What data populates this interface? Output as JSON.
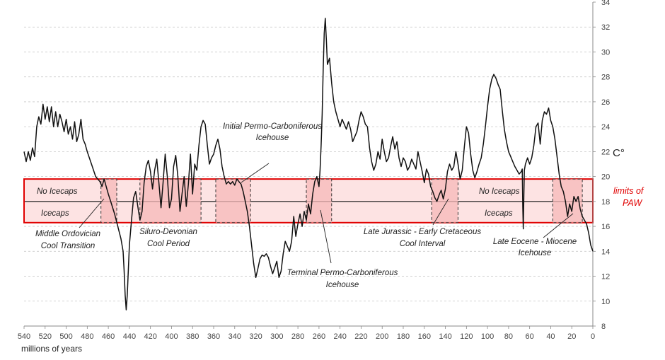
{
  "chart_data": {
    "type": "line",
    "title": "",
    "xlabel": "millions of years",
    "ylabel": "C°",
    "xlim": [
      540,
      0
    ],
    "ylim": [
      8,
      34
    ],
    "x_ticks": [
      "540",
      "520",
      "500",
      "480",
      "460",
      "440",
      "420",
      "400",
      "380",
      "360",
      "340",
      "320",
      "300",
      "280",
      "260",
      "240",
      "220",
      "200",
      "180",
      "160",
      "140",
      "120",
      "100",
      "80",
      "60",
      "40",
      "20",
      "0"
    ],
    "y_ticks": [
      "8",
      "10",
      "12",
      "14",
      "16",
      "18",
      "20",
      "22",
      "24",
      "26",
      "28",
      "30",
      "32",
      "34"
    ],
    "grid": "horizontal",
    "colors": {
      "line": "#111111",
      "band": "#e00000",
      "band_fill": "#fde3e3",
      "interval_fill": "#f6b8b8"
    },
    "paw_band": {
      "low": 16.3,
      "mid": 18.0,
      "high": 19.8,
      "label": "limits of PAW"
    },
    "band_labels": {
      "no_icecaps_left": "No Icecaps",
      "icecaps_left": "Icecaps",
      "no_icecaps_right": "No Icecaps",
      "icecaps_right": "Icecaps"
    },
    "cool_intervals": [
      {
        "from": 467,
        "to": 452,
        "label_lines": [
          "Middle Ordovician",
          "Cool Transition"
        ]
      },
      {
        "from": 430,
        "to": 372,
        "label_lines": [
          "Siluro-Devonian",
          "Cool Period"
        ]
      },
      {
        "from": 358,
        "to": 325,
        "label_lines": [
          "Initial Permo-Carboniferous",
          "Icehouse"
        ]
      },
      {
        "from": 272,
        "to": 248,
        "label_lines": [
          "Terminal Permo-Carboniferous",
          "Icehouse"
        ]
      },
      {
        "from": 153,
        "to": 128,
        "label_lines": [
          "Late Jurassic - Early Cretaceous",
          "Cool Interval"
        ]
      },
      {
        "from": 38,
        "to": 10,
        "label_lines": [
          "Late Eocene - Miocene",
          "Icehouse"
        ]
      }
    ],
    "series": [
      {
        "values": [
          [
            540,
            22.0
          ],
          [
            538,
            21.2
          ],
          [
            536,
            22.0
          ],
          [
            534,
            21.3
          ],
          [
            532,
            22.3
          ],
          [
            530,
            21.6
          ],
          [
            528,
            24.0
          ],
          [
            526,
            24.8
          ],
          [
            524,
            24.2
          ],
          [
            522,
            25.8
          ],
          [
            520,
            24.6
          ],
          [
            518,
            25.6
          ],
          [
            516,
            24.4
          ],
          [
            514,
            25.6
          ],
          [
            512,
            24.0
          ],
          [
            510,
            25.2
          ],
          [
            508,
            24.0
          ],
          [
            506,
            25.0
          ],
          [
            504,
            24.4
          ],
          [
            502,
            23.6
          ],
          [
            500,
            24.6
          ],
          [
            498,
            23.4
          ],
          [
            496,
            24.0
          ],
          [
            494,
            23.0
          ],
          [
            492,
            24.4
          ],
          [
            490,
            22.8
          ],
          [
            488,
            23.4
          ],
          [
            486,
            24.6
          ],
          [
            484,
            23.0
          ],
          [
            482,
            22.6
          ],
          [
            480,
            22.0
          ],
          [
            476,
            21.0
          ],
          [
            472,
            20.0
          ],
          [
            468,
            19.6
          ],
          [
            466,
            19.2
          ],
          [
            464,
            19.8
          ],
          [
            462,
            19.2
          ],
          [
            460,
            18.6
          ],
          [
            457,
            17.8
          ],
          [
            454,
            17.0
          ],
          [
            451,
            16.0
          ],
          [
            448,
            15.0
          ],
          [
            446,
            14.0
          ],
          [
            445,
            12.5
          ],
          [
            444,
            10.5
          ],
          [
            443,
            9.3
          ],
          [
            442,
            10.5
          ],
          [
            441,
            12.5
          ],
          [
            440,
            14.5
          ],
          [
            438,
            16.5
          ],
          [
            436,
            18.3
          ],
          [
            434,
            18.8
          ],
          [
            432,
            17.6
          ],
          [
            430,
            16.5
          ],
          [
            428,
            17.2
          ],
          [
            426,
            19.5
          ],
          [
            424,
            20.8
          ],
          [
            422,
            21.3
          ],
          [
            420,
            20.4
          ],
          [
            418,
            19.0
          ],
          [
            416,
            20.5
          ],
          [
            414,
            21.4
          ],
          [
            412,
            19.5
          ],
          [
            410,
            17.5
          ],
          [
            408,
            19.5
          ],
          [
            406,
            21.8
          ],
          [
            404,
            20.0
          ],
          [
            402,
            17.5
          ],
          [
            400,
            18.2
          ],
          [
            398,
            20.8
          ],
          [
            396,
            21.7
          ],
          [
            394,
            20.0
          ],
          [
            392,
            17.2
          ],
          [
            390,
            18.6
          ],
          [
            388,
            20.0
          ],
          [
            386,
            17.6
          ],
          [
            384,
            19.4
          ],
          [
            382,
            21.8
          ],
          [
            380,
            18.6
          ],
          [
            378,
            21.0
          ],
          [
            376,
            20.5
          ],
          [
            374,
            22.5
          ],
          [
            372,
            24.0
          ],
          [
            370,
            24.5
          ],
          [
            368,
            24.2
          ],
          [
            366,
            22.5
          ],
          [
            364,
            21.0
          ],
          [
            362,
            21.5
          ],
          [
            360,
            21.8
          ],
          [
            358,
            22.5
          ],
          [
            356,
            23.0
          ],
          [
            354,
            22.2
          ],
          [
            352,
            20.8
          ],
          [
            350,
            20.0
          ],
          [
            348,
            19.4
          ],
          [
            346,
            19.6
          ],
          [
            344,
            19.4
          ],
          [
            342,
            19.6
          ],
          [
            340,
            19.3
          ],
          [
            338,
            19.8
          ],
          [
            336,
            19.6
          ],
          [
            334,
            19.4
          ],
          [
            332,
            18.8
          ],
          [
            330,
            18.0
          ],
          [
            328,
            17.2
          ],
          [
            326,
            16.0
          ],
          [
            324,
            14.5
          ],
          [
            322,
            13.0
          ],
          [
            320,
            11.9
          ],
          [
            318,
            12.6
          ],
          [
            316,
            13.4
          ],
          [
            314,
            13.7
          ],
          [
            312,
            13.6
          ],
          [
            310,
            13.8
          ],
          [
            308,
            13.5
          ],
          [
            306,
            12.8
          ],
          [
            304,
            12.2
          ],
          [
            302,
            12.7
          ],
          [
            300,
            13.2
          ],
          [
            298,
            11.9
          ],
          [
            296,
            12.4
          ],
          [
            294,
            13.8
          ],
          [
            292,
            14.8
          ],
          [
            290,
            14.4
          ],
          [
            288,
            14.0
          ],
          [
            286,
            14.8
          ],
          [
            284,
            16.8
          ],
          [
            282,
            15.2
          ],
          [
            280,
            16.2
          ],
          [
            278,
            17.0
          ],
          [
            276,
            16.0
          ],
          [
            274,
            17.2
          ],
          [
            272,
            16.5
          ],
          [
            270,
            17.8
          ],
          [
            268,
            17.0
          ],
          [
            266,
            18.6
          ],
          [
            264,
            19.6
          ],
          [
            262,
            20.0
          ],
          [
            260,
            19.2
          ],
          [
            259,
            20.5
          ],
          [
            258,
            22.5
          ],
          [
            257,
            25.0
          ],
          [
            256,
            28.5
          ],
          [
            255,
            31.5
          ],
          [
            254,
            32.7
          ],
          [
            253,
            31.0
          ],
          [
            252,
            29.0
          ],
          [
            250,
            29.5
          ],
          [
            248,
            27.5
          ],
          [
            246,
            26.0
          ],
          [
            244,
            25.2
          ],
          [
            242,
            24.6
          ],
          [
            240,
            24.0
          ],
          [
            238,
            24.6
          ],
          [
            236,
            24.2
          ],
          [
            234,
            23.8
          ],
          [
            232,
            24.4
          ],
          [
            230,
            23.8
          ],
          [
            228,
            22.8
          ],
          [
            226,
            23.2
          ],
          [
            224,
            23.6
          ],
          [
            222,
            24.5
          ],
          [
            220,
            25.2
          ],
          [
            218,
            24.8
          ],
          [
            216,
            24.2
          ],
          [
            214,
            24.0
          ],
          [
            212,
            22.3
          ],
          [
            210,
            21.2
          ],
          [
            208,
            20.5
          ],
          [
            206,
            21.0
          ],
          [
            204,
            22.0
          ],
          [
            202,
            21.4
          ],
          [
            200,
            23.0
          ],
          [
            198,
            22.0
          ],
          [
            196,
            21.2
          ],
          [
            194,
            21.5
          ],
          [
            192,
            22.4
          ],
          [
            190,
            23.2
          ],
          [
            188,
            22.2
          ],
          [
            186,
            22.8
          ],
          [
            184,
            21.5
          ],
          [
            182,
            20.8
          ],
          [
            180,
            21.5
          ],
          [
            178,
            21.2
          ],
          [
            176,
            20.5
          ],
          [
            174,
            20.8
          ],
          [
            172,
            21.4
          ],
          [
            170,
            21.0
          ],
          [
            168,
            20.6
          ],
          [
            166,
            22.0
          ],
          [
            164,
            21.2
          ],
          [
            162,
            20.4
          ],
          [
            160,
            19.5
          ],
          [
            158,
            20.6
          ],
          [
            156,
            20.2
          ],
          [
            154,
            19.2
          ],
          [
            152,
            18.8
          ],
          [
            150,
            18.3
          ],
          [
            148,
            18.0
          ],
          [
            146,
            18.5
          ],
          [
            144,
            18.9
          ],
          [
            142,
            18.2
          ],
          [
            140,
            19.0
          ],
          [
            138,
            20.4
          ],
          [
            136,
            21.0
          ],
          [
            134,
            20.5
          ],
          [
            132,
            20.8
          ],
          [
            130,
            22.0
          ],
          [
            128,
            21.0
          ],
          [
            126,
            19.8
          ],
          [
            124,
            20.5
          ],
          [
            122,
            22.4
          ],
          [
            120,
            24.0
          ],
          [
            118,
            23.5
          ],
          [
            116,
            21.8
          ],
          [
            114,
            20.5
          ],
          [
            112,
            19.9
          ],
          [
            110,
            20.4
          ],
          [
            108,
            21.0
          ],
          [
            106,
            21.5
          ],
          [
            104,
            22.6
          ],
          [
            102,
            24.0
          ],
          [
            100,
            25.6
          ],
          [
            98,
            27.0
          ],
          [
            96,
            27.8
          ],
          [
            94,
            28.2
          ],
          [
            92,
            27.9
          ],
          [
            90,
            27.4
          ],
          [
            88,
            27.0
          ],
          [
            86,
            25.3
          ],
          [
            84,
            23.8
          ],
          [
            82,
            22.8
          ],
          [
            80,
            22.0
          ],
          [
            78,
            21.6
          ],
          [
            76,
            21.2
          ],
          [
            74,
            20.8
          ],
          [
            72,
            20.5
          ],
          [
            70,
            20.2
          ],
          [
            68,
            20.4
          ],
          [
            67,
            20.6
          ],
          [
            66.5,
            17.5
          ],
          [
            66,
            15.8
          ],
          [
            65.5,
            18.5
          ],
          [
            65,
            20.5
          ],
          [
            64,
            21.0
          ],
          [
            62,
            21.5
          ],
          [
            60,
            21.0
          ],
          [
            58,
            21.5
          ],
          [
            56,
            22.5
          ],
          [
            54,
            24.0
          ],
          [
            52,
            24.3
          ],
          [
            50,
            22.6
          ],
          [
            48,
            24.5
          ],
          [
            46,
            25.2
          ],
          [
            44,
            25.0
          ],
          [
            42,
            25.5
          ],
          [
            40,
            24.5
          ],
          [
            38,
            24.0
          ],
          [
            36,
            23.0
          ],
          [
            34,
            21.6
          ],
          [
            32,
            20.2
          ],
          [
            30,
            19.2
          ],
          [
            28,
            18.8
          ],
          [
            26,
            18.0
          ],
          [
            24,
            16.8
          ],
          [
            22,
            17.8
          ],
          [
            20,
            17.2
          ],
          [
            18,
            18.4
          ],
          [
            16,
            18.0
          ],
          [
            14,
            18.4
          ],
          [
            12,
            17.4
          ],
          [
            10,
            16.8
          ],
          [
            8,
            16.5
          ],
          [
            6,
            16.2
          ],
          [
            4,
            15.5
          ],
          [
            2,
            14.5
          ],
          [
            0,
            14.0
          ]
        ]
      }
    ]
  }
}
